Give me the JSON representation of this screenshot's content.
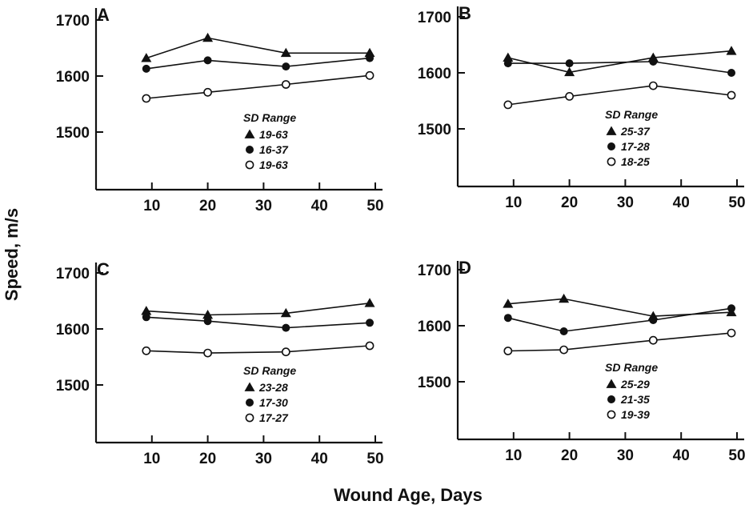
{
  "chart_data": {
    "type": "line",
    "xlabel": "Wound Age, Days",
    "ylabel": "Speed, m/s",
    "xlim": [
      0,
      50
    ],
    "ylim": [
      1450,
      1700
    ],
    "xticks": [
      "10",
      "20",
      "30",
      "40",
      "50"
    ],
    "yticks": [
      "1500",
      "1600",
      "1700"
    ],
    "grid": false,
    "legend_title": "SD Range",
    "panels": [
      {
        "label": "A",
        "series": [
          {
            "marker": "triangle",
            "x": [
              9,
              20,
              34,
              49
            ],
            "y": [
              1632,
              1668,
              1641,
              1641
            ]
          },
          {
            "marker": "filled-circle",
            "x": [
              9,
              20,
              34,
              49
            ],
            "y": [
              1613,
              1628,
              1617,
              1632
            ]
          },
          {
            "marker": "open-circle",
            "x": [
              9,
              20,
              34,
              49
            ],
            "y": [
              1560,
              1571,
              1585,
              1601
            ]
          }
        ],
        "legend": [
          "19-63",
          "16-37",
          "19-63"
        ]
      },
      {
        "label": "B",
        "series": [
          {
            "marker": "triangle",
            "x": [
              9,
              20,
              35,
              49
            ],
            "y": [
              1627,
              1601,
              1627,
              1639
            ]
          },
          {
            "marker": "filled-circle",
            "x": [
              9,
              20,
              35,
              49
            ],
            "y": [
              1617,
              1617,
              1620,
              1600
            ]
          },
          {
            "marker": "open-circle",
            "x": [
              9,
              20,
              35,
              49
            ],
            "y": [
              1543,
              1558,
              1577,
              1560
            ]
          }
        ],
        "legend": [
          "25-37",
          "17-28",
          "18-25"
        ]
      },
      {
        "label": "C",
        "series": [
          {
            "marker": "triangle",
            "x": [
              9,
              20,
              34,
              49
            ],
            "y": [
              1632,
              1625,
              1628,
              1646
            ]
          },
          {
            "marker": "filled-circle",
            "x": [
              9,
              20,
              34,
              49
            ],
            "y": [
              1621,
              1614,
              1602,
              1611
            ]
          },
          {
            "marker": "open-circle",
            "x": [
              9,
              20,
              34,
              49
            ],
            "y": [
              1561,
              1557,
              1559,
              1570
            ]
          }
        ],
        "legend": [
          "23-28",
          "17-30",
          "17-27"
        ]
      },
      {
        "label": "D",
        "series": [
          {
            "marker": "triangle",
            "x": [
              9,
              19,
              35,
              49
            ],
            "y": [
              1639,
              1648,
              1617,
              1624
            ]
          },
          {
            "marker": "filled-circle",
            "x": [
              9,
              19,
              35,
              49
            ],
            "y": [
              1614,
              1590,
              1610,
              1631
            ]
          },
          {
            "marker": "open-circle",
            "x": [
              9,
              19,
              35,
              49
            ],
            "y": [
              1555,
              1557,
              1574,
              1587
            ]
          }
        ],
        "legend": [
          "25-29",
          "21-35",
          "19-39"
        ]
      }
    ]
  }
}
